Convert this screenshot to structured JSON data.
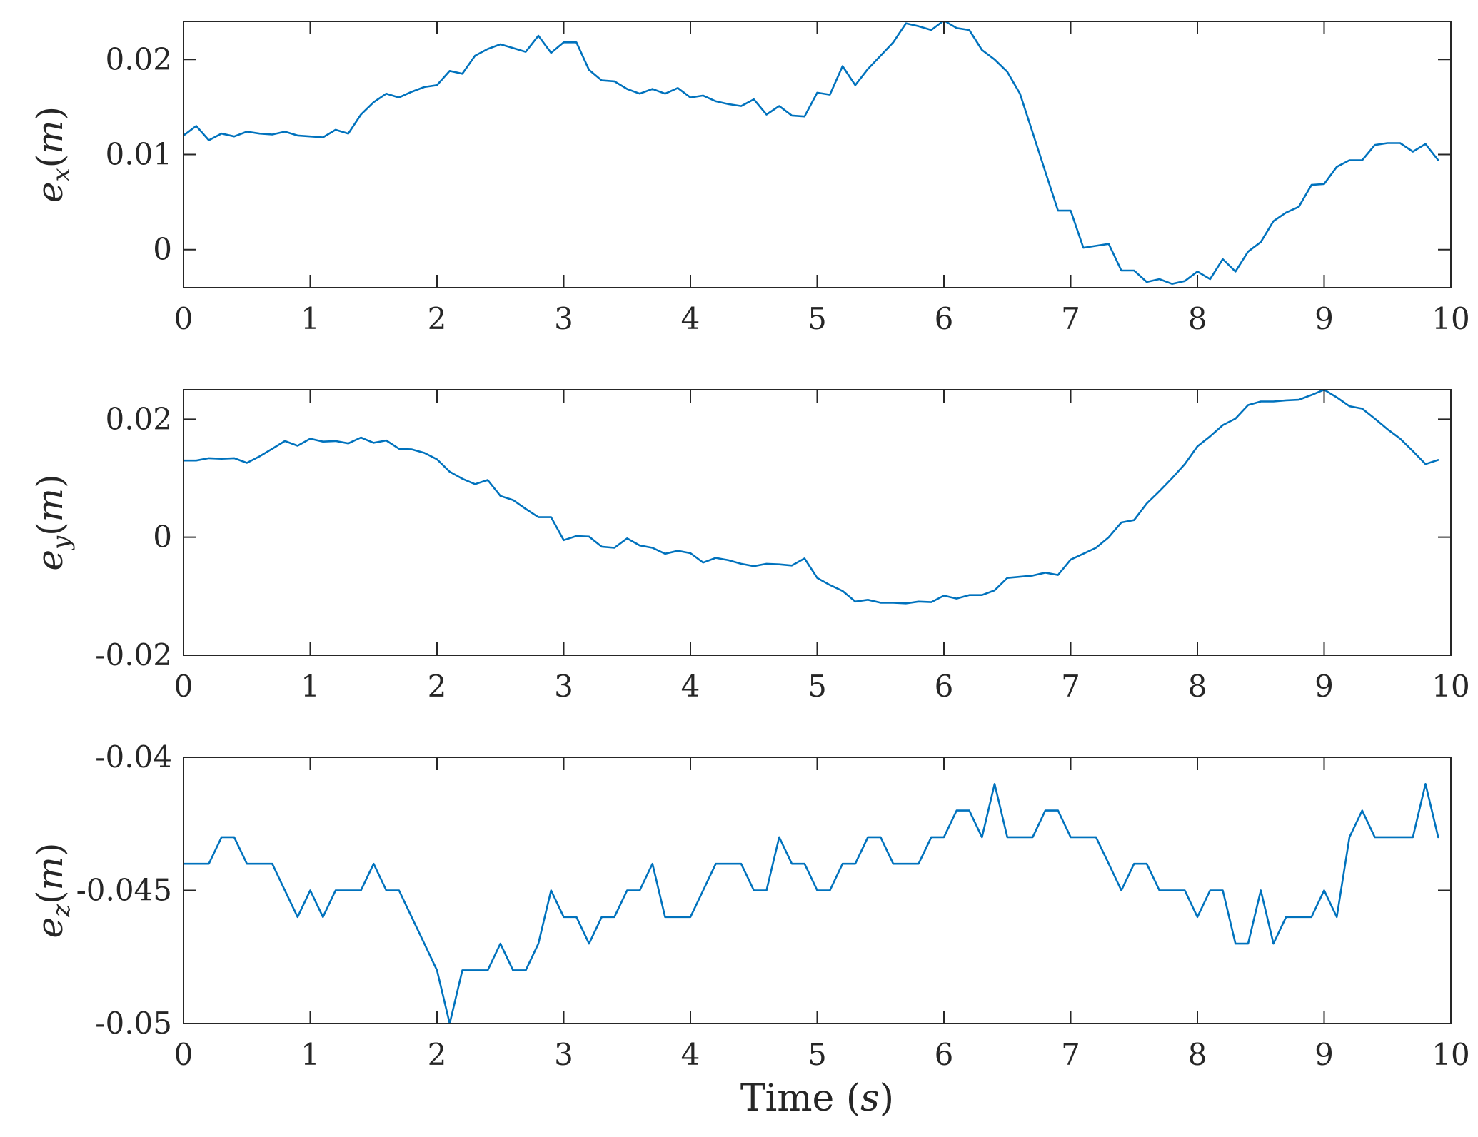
{
  "chart_data": [
    {
      "type": "line",
      "ylabel": {
        "var": "e",
        "sub": "x",
        "unit": "m"
      },
      "xlim": [
        0,
        10
      ],
      "ylim": [
        -0.004,
        0.024
      ],
      "xticks": [
        0,
        1,
        2,
        3,
        4,
        5,
        6,
        7,
        8,
        9,
        10
      ],
      "xtick_labels": [
        "0",
        "1",
        "2",
        "3",
        "4",
        "5",
        "6",
        "7",
        "8",
        "9",
        "10"
      ],
      "yticks": [
        0,
        0.01,
        0.02
      ],
      "ytick_labels": [
        "0",
        "0.01",
        "0.02"
      ],
      "series": [
        {
          "color": "#0072BD",
          "x": [
            0,
            0.1,
            0.2,
            0.3,
            0.4,
            0.5,
            0.6,
            0.7,
            0.8,
            0.9,
            1.0,
            1.1,
            1.2,
            1.3,
            1.4,
            1.5,
            1.6,
            1.7,
            1.8,
            1.9,
            2.0,
            2.1,
            2.2,
            2.3,
            2.4,
            2.5,
            2.6,
            2.7,
            2.8,
            2.9,
            3.0,
            3.1,
            3.2,
            3.3,
            3.4,
            3.5,
            3.6,
            3.7,
            3.8,
            3.9,
            4.0,
            4.1,
            4.2,
            4.3,
            4.4,
            4.5,
            4.6,
            4.7,
            4.8,
            4.9,
            5.0,
            5.1,
            5.2,
            5.3,
            5.4,
            5.5,
            5.6,
            5.7,
            5.8,
            5.9,
            6.0,
            6.1,
            6.2,
            6.3,
            6.4,
            6.5,
            6.6,
            6.7,
            6.8,
            6.9,
            7.0,
            7.1,
            7.2,
            7.3,
            7.4,
            7.5,
            7.6,
            7.7,
            7.8,
            7.9,
            8.0,
            8.1,
            8.2,
            8.3,
            8.4,
            8.5,
            8.6,
            8.7,
            8.8,
            8.9,
            9.0,
            9.1,
            9.2,
            9.3,
            9.4,
            9.5,
            9.6,
            9.7,
            9.8,
            9.9
          ],
          "y": [
            0.012,
            0.013,
            0.0115,
            0.0122,
            0.0119,
            0.0124,
            0.0122,
            0.0121,
            0.0124,
            0.012,
            0.0119,
            0.0118,
            0.0126,
            0.0122,
            0.0142,
            0.0155,
            0.0164,
            0.016,
            0.0166,
            0.0171,
            0.0173,
            0.0188,
            0.0185,
            0.0204,
            0.0211,
            0.0216,
            0.0212,
            0.0208,
            0.0225,
            0.0207,
            0.0218,
            0.0218,
            0.0189,
            0.0178,
            0.0177,
            0.0169,
            0.0164,
            0.0169,
            0.0164,
            0.017,
            0.016,
            0.0162,
            0.0156,
            0.0153,
            0.0151,
            0.0158,
            0.0142,
            0.0151,
            0.0141,
            0.014,
            0.0165,
            0.0163,
            0.0193,
            0.0173,
            0.019,
            0.0204,
            0.0218,
            0.0238,
            0.0235,
            0.0231,
            0.0241,
            0.0233,
            0.0231,
            0.021,
            0.02,
            0.0187,
            0.0164,
            0.0123,
            0.0082,
            0.0041,
            0.0041,
            0.0002,
            0.0004,
            0.0006,
            -0.0022,
            -0.0022,
            -0.0034,
            -0.0031,
            -0.0036,
            -0.0033,
            -0.0023,
            -0.0031,
            -0.001,
            -0.0023,
            -0.0002,
            0.0008,
            0.003,
            0.0039,
            0.0045,
            0.0068,
            0.0069,
            0.0087,
            0.0094,
            0.0094,
            0.011,
            0.0112,
            0.0112,
            0.0103,
            0.0111,
            0.0094
          ]
        }
      ]
    },
    {
      "type": "line",
      "ylabel": {
        "var": "e",
        "sub": "y",
        "unit": "m"
      },
      "xlim": [
        0,
        10
      ],
      "ylim": [
        -0.02,
        0.025
      ],
      "xticks": [
        0,
        1,
        2,
        3,
        4,
        5,
        6,
        7,
        8,
        9,
        10
      ],
      "xtick_labels": [
        "0",
        "1",
        "2",
        "3",
        "4",
        "5",
        "6",
        "7",
        "8",
        "9",
        "10"
      ],
      "yticks": [
        -0.02,
        0,
        0.02
      ],
      "ytick_labels": [
        "-0.02",
        "0",
        "0.02"
      ],
      "series": [
        {
          "color": "#0072BD",
          "x": [
            0,
            0.1,
            0.2,
            0.3,
            0.4,
            0.5,
            0.6,
            0.7,
            0.8,
            0.9,
            1.0,
            1.1,
            1.2,
            1.3,
            1.4,
            1.5,
            1.6,
            1.7,
            1.8,
            1.9,
            2.0,
            2.1,
            2.2,
            2.3,
            2.4,
            2.5,
            2.6,
            2.7,
            2.8,
            2.9,
            3.0,
            3.1,
            3.2,
            3.3,
            3.4,
            3.5,
            3.6,
            3.7,
            3.8,
            3.9,
            4.0,
            4.1,
            4.2,
            4.3,
            4.4,
            4.5,
            4.6,
            4.7,
            4.8,
            4.9,
            5.0,
            5.1,
            5.2,
            5.3,
            5.4,
            5.5,
            5.6,
            5.7,
            5.8,
            5.9,
            6.0,
            6.1,
            6.2,
            6.3,
            6.4,
            6.5,
            6.6,
            6.7,
            6.8,
            6.9,
            7.0,
            7.1,
            7.2,
            7.3,
            7.4,
            7.5,
            7.6,
            7.7,
            7.8,
            7.9,
            8.0,
            8.1,
            8.2,
            8.3,
            8.4,
            8.5,
            8.6,
            8.7,
            8.8,
            8.9,
            9.0,
            9.1,
            9.2,
            9.3,
            9.4,
            9.5,
            9.6,
            9.7,
            9.8,
            9.9
          ],
          "y": [
            0.013,
            0.013,
            0.0134,
            0.0133,
            0.0134,
            0.0126,
            0.0137,
            0.015,
            0.0163,
            0.0155,
            0.0167,
            0.0162,
            0.0163,
            0.0159,
            0.0169,
            0.016,
            0.0164,
            0.015,
            0.0149,
            0.0143,
            0.0132,
            0.0111,
            0.0099,
            0.009,
            0.0097,
            0.007,
            0.0063,
            0.0048,
            0.0034,
            0.0034,
            -0.0005,
            0.0002,
            0.0001,
            -0.0016,
            -0.0018,
            -0.0002,
            -0.0014,
            -0.0018,
            -0.0028,
            -0.0023,
            -0.0027,
            -0.0043,
            -0.0035,
            -0.0039,
            -0.0045,
            -0.0049,
            -0.0045,
            -0.0046,
            -0.0048,
            -0.0036,
            -0.0069,
            -0.0081,
            -0.0091,
            -0.0109,
            -0.0106,
            -0.0111,
            -0.0111,
            -0.0112,
            -0.0109,
            -0.011,
            -0.0099,
            -0.0104,
            -0.0098,
            -0.0098,
            -0.009,
            -0.0069,
            -0.0067,
            -0.0065,
            -0.006,
            -0.0064,
            -0.0038,
            -0.0028,
            -0.0018,
            0.0,
            0.0025,
            0.0029,
            0.0057,
            0.0078,
            0.01,
            0.0124,
            0.0154,
            0.0171,
            0.019,
            0.0201,
            0.0224,
            0.023,
            0.023,
            0.0232,
            0.0233,
            0.0241,
            0.025,
            0.0237,
            0.0222,
            0.0218,
            0.0201,
            0.0183,
            0.0167,
            0.0146,
            0.0124,
            0.0131
          ]
        }
      ]
    },
    {
      "type": "line",
      "xlabel": "Time",
      "xlabel_unit": "s",
      "ylabel": {
        "var": "e",
        "sub": "z",
        "unit": "m"
      },
      "xlim": [
        0,
        10
      ],
      "ylim": [
        -0.05,
        -0.04
      ],
      "xticks": [
        0,
        1,
        2,
        3,
        4,
        5,
        6,
        7,
        8,
        9,
        10
      ],
      "xtick_labels": [
        "0",
        "1",
        "2",
        "3",
        "4",
        "5",
        "6",
        "7",
        "8",
        "9",
        "10"
      ],
      "yticks": [
        -0.05,
        -0.045,
        -0.04
      ],
      "ytick_labels": [
        "-0.05",
        "-0.045",
        "-0.04"
      ],
      "series": [
        {
          "color": "#0072BD",
          "x": [
            0,
            0.1,
            0.2,
            0.3,
            0.4,
            0.5,
            0.6,
            0.7,
            0.8,
            0.9,
            1.0,
            1.1,
            1.2,
            1.3,
            1.4,
            1.5,
            1.6,
            1.7,
            1.8,
            1.9,
            2.0,
            2.1,
            2.2,
            2.3,
            2.4,
            2.5,
            2.6,
            2.7,
            2.8,
            2.9,
            3.0,
            3.1,
            3.2,
            3.3,
            3.4,
            3.5,
            3.6,
            3.7,
            3.8,
            3.9,
            4.0,
            4.1,
            4.2,
            4.3,
            4.4,
            4.5,
            4.6,
            4.7,
            4.8,
            4.9,
            5.0,
            5.1,
            5.2,
            5.3,
            5.4,
            5.5,
            5.6,
            5.7,
            5.8,
            5.9,
            6.0,
            6.1,
            6.2,
            6.3,
            6.4,
            6.5,
            6.6,
            6.7,
            6.8,
            6.9,
            7.0,
            7.1,
            7.2,
            7.3,
            7.4,
            7.5,
            7.6,
            7.7,
            7.8,
            7.9,
            8.0,
            8.1,
            8.2,
            8.3,
            8.4,
            8.5,
            8.6,
            8.7,
            8.8,
            8.9,
            9.0,
            9.1,
            9.2,
            9.3,
            9.4,
            9.5,
            9.6,
            9.7,
            9.8,
            9.9
          ],
          "y": [
            -0.044,
            -0.044,
            -0.044,
            -0.043,
            -0.043,
            -0.044,
            -0.044,
            -0.044,
            -0.045,
            -0.046,
            -0.045,
            -0.046,
            -0.045,
            -0.045,
            -0.045,
            -0.044,
            -0.045,
            -0.045,
            -0.046,
            -0.047,
            -0.048,
            -0.05,
            -0.048,
            -0.048,
            -0.048,
            -0.047,
            -0.048,
            -0.048,
            -0.047,
            -0.045,
            -0.046,
            -0.046,
            -0.047,
            -0.046,
            -0.046,
            -0.045,
            -0.045,
            -0.044,
            -0.046,
            -0.046,
            -0.046,
            -0.045,
            -0.044,
            -0.044,
            -0.044,
            -0.045,
            -0.045,
            -0.043,
            -0.044,
            -0.044,
            -0.045,
            -0.045,
            -0.044,
            -0.044,
            -0.043,
            -0.043,
            -0.044,
            -0.044,
            -0.044,
            -0.043,
            -0.043,
            -0.042,
            -0.042,
            -0.043,
            -0.041,
            -0.043,
            -0.043,
            -0.043,
            -0.042,
            -0.042,
            -0.043,
            -0.043,
            -0.043,
            -0.044,
            -0.045,
            -0.044,
            -0.044,
            -0.045,
            -0.045,
            -0.045,
            -0.046,
            -0.045,
            -0.045,
            -0.047,
            -0.047,
            -0.045,
            -0.047,
            -0.046,
            -0.046,
            -0.046,
            -0.045,
            -0.046,
            -0.043,
            -0.042,
            -0.043,
            -0.043,
            -0.043,
            -0.043,
            -0.041,
            -0.043
          ]
        }
      ]
    }
  ]
}
